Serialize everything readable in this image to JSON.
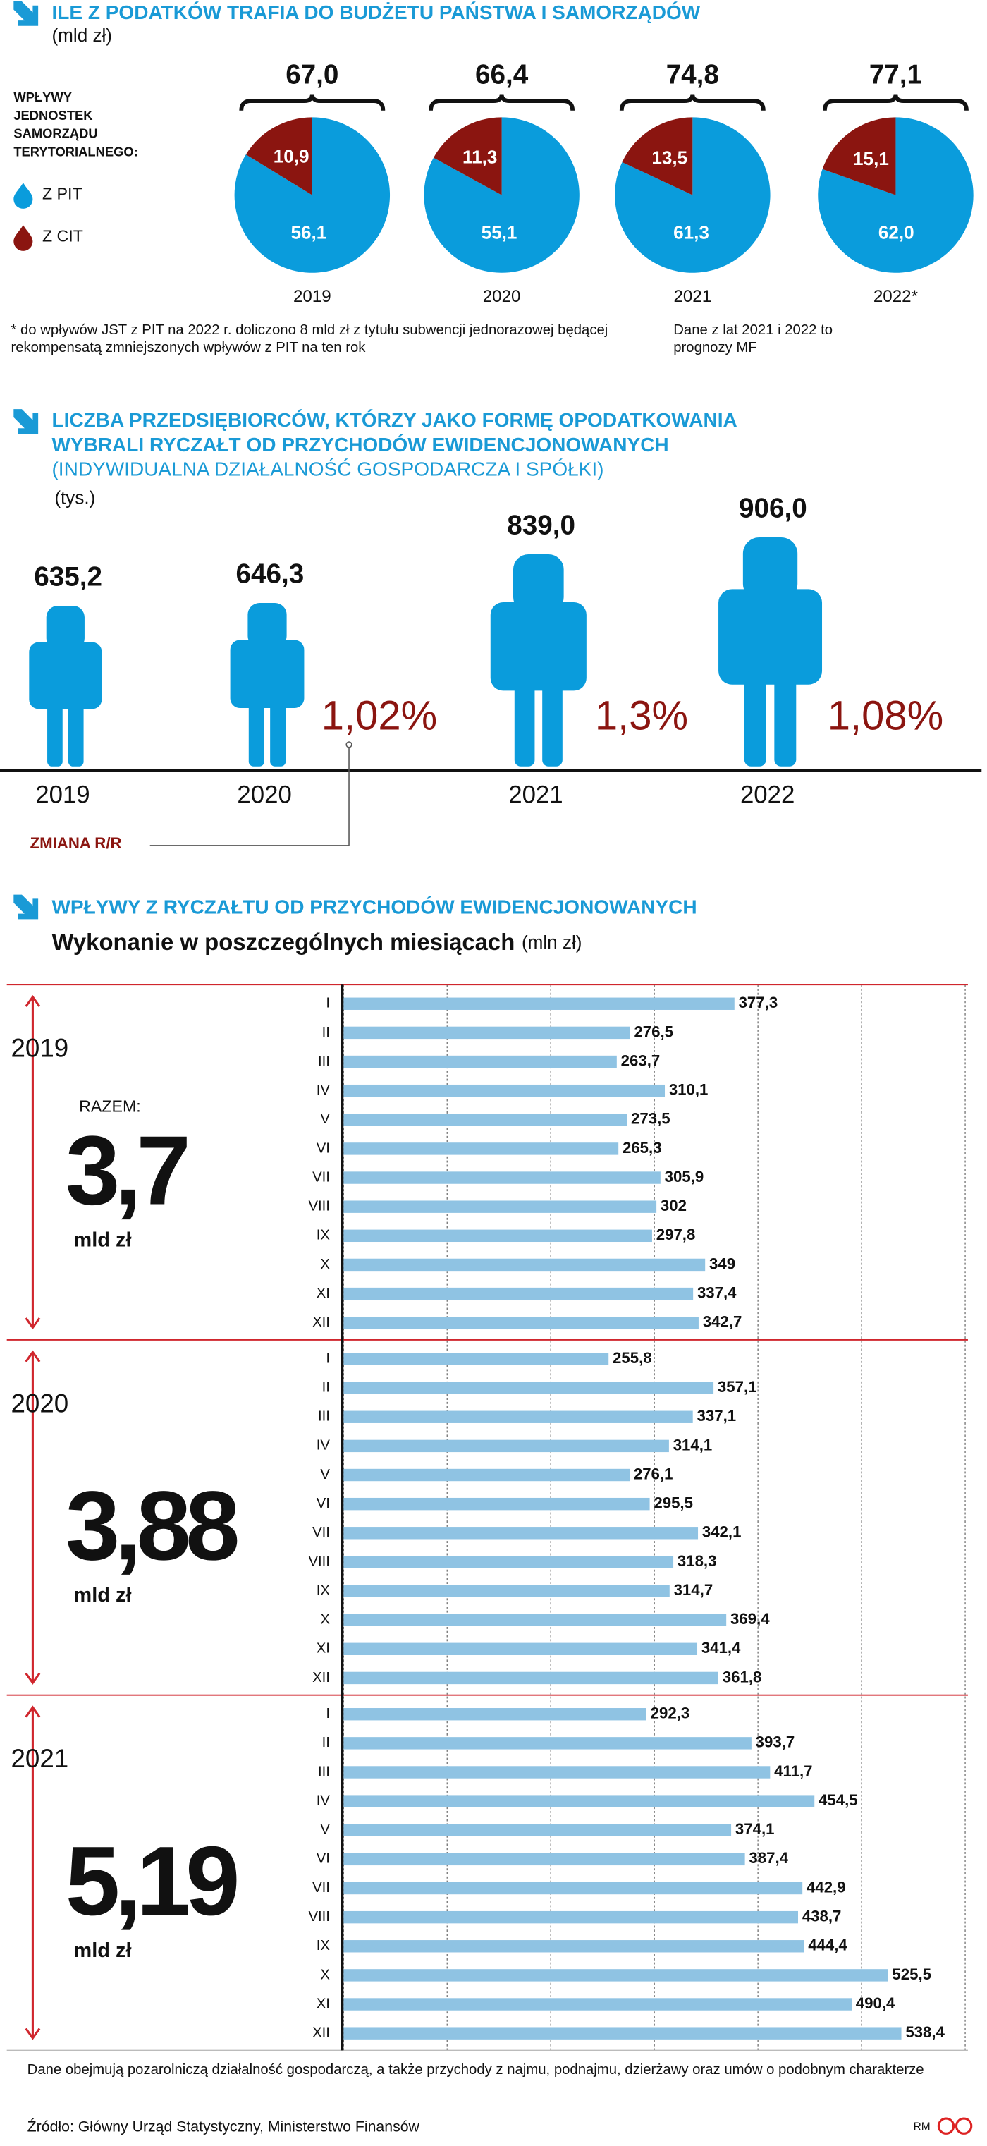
{
  "chart_data": [
    {
      "type": "pie",
      "title": "ILE Z PODATKÓW TRAFIA DO BUDŻETU PAŃSTWA I SAMORZĄDÓW",
      "subtitle": "(mld zł)",
      "legend_title": [
        "WPŁYWY",
        "JEDNOSTEK",
        "SAMORZĄDU",
        "TERYTORIALNEGO:"
      ],
      "categories": [
        "2019",
        "2020",
        "2021",
        "2022*"
      ],
      "totals": [
        67.0,
        66.4,
        74.8,
        77.1
      ],
      "total_labels": [
        "67,0",
        "66,4",
        "74,8",
        "77,1"
      ],
      "series": [
        {
          "name": "Z PIT",
          "color": "#0a9cdc",
          "values": [
            56.1,
            55.1,
            61.3,
            62.0
          ],
          "value_labels": [
            "56,1",
            "55,1",
            "61,3",
            "62,0"
          ]
        },
        {
          "name": "Z CIT",
          "color": "#8b1510",
          "values": [
            10.9,
            11.3,
            13.5,
            15.1
          ],
          "value_labels": [
            "10,9",
            "11,3",
            "13,5",
            "15,1"
          ]
        }
      ],
      "notes": [
        "* do wpływów JST z PIT na 2022 r. doliczono 8 mld zł z tytułu subwencji jednorazowej będącej rekompensatą zmniejszonych wpływów z PIT na ten rok",
        "Dane z lat 2021 i 2022 to prognozy MF"
      ]
    },
    {
      "type": "pictogram",
      "title": [
        "LICZBA PRZEDSIĘBIORCÓW, KTÓRZY JAKO FORMĘ OPODATKOWANIA",
        "WYBRALI RYCZAŁT OD PRZYCHODÓW EWIDENCJONOWANYCH"
      ],
      "subtitle": "(INDYWIDUALNA DZIAŁALNOŚĆ GOSPODARCZA I SPÓŁKI)",
      "unit": "(tys.)",
      "categories": [
        "2019",
        "2020",
        "2021",
        "2022"
      ],
      "values": [
        635.2,
        646.3,
        839.0,
        906.0
      ],
      "value_labels": [
        "635,2",
        "646,3",
        "839,0",
        "906,0"
      ],
      "color": "#0a9cdc",
      "changes": [
        null,
        1.02,
        1.3,
        1.08
      ],
      "change_labels": [
        null,
        "1,02%",
        "1,3%",
        "1,08%"
      ],
      "change_title": "ZMIANA R/R",
      "change_color": "#8b1510"
    },
    {
      "type": "hbar",
      "title": "WPŁYWY Z RYCZAŁTU OD PRZYCHODÓW EWIDENCJONOWANYCH",
      "subtitle": "Wykonanie w poszczególnych miesiącach",
      "unit": "(mln zł)",
      "categories": [
        "I",
        "II",
        "III",
        "IV",
        "V",
        "VI",
        "VII",
        "VIII",
        "IX",
        "X",
        "XI",
        "XII"
      ],
      "xlim": [
        0,
        600
      ],
      "xticks": [
        0,
        100,
        200,
        300,
        400,
        500,
        600
      ],
      "grid": true,
      "color": "#8fc3e3",
      "total_caption": "RAZEM:",
      "total_unit": "mld zł",
      "series": [
        {
          "name": "2019",
          "total": 3.7,
          "total_label": "3,7",
          "values": [
            377.3,
            276.5,
            263.7,
            310.1,
            273.5,
            265.3,
            305.9,
            302,
            297.8,
            349,
            337.4,
            342.7
          ],
          "value_labels": [
            "377,3",
            "276,5",
            "263,7",
            "310,1",
            "273,5",
            "265,3",
            "305,9",
            "302",
            "297,8",
            "349",
            "337,4",
            "342,7"
          ]
        },
        {
          "name": "2020",
          "total": 3.88,
          "total_label": "3,88",
          "values": [
            255.8,
            357.1,
            337.1,
            314.1,
            276.1,
            295.5,
            342.1,
            318.3,
            314.7,
            369.4,
            341.4,
            361.8
          ],
          "value_labels": [
            "255,8",
            "357,1",
            "337,1",
            "314,1",
            "276,1",
            "295,5",
            "342,1",
            "318,3",
            "314,7",
            "369,4",
            "341,4",
            "361,8"
          ]
        },
        {
          "name": "2021",
          "total": 5.19,
          "total_label": "5,19",
          "values": [
            292.3,
            393.7,
            411.7,
            454.5,
            374.1,
            387.4,
            442.9,
            438.7,
            444.4,
            525.5,
            490.4,
            538.4
          ],
          "value_labels": [
            "292,3",
            "393,7",
            "411,7",
            "454,5",
            "374,1",
            "387,4",
            "442,9",
            "438,7",
            "444,4",
            "525,5",
            "490,4",
            "538,4"
          ]
        }
      ]
    }
  ],
  "footer": {
    "note": "Dane obejmują pozarolniczą działalność gospodarczą, a także przychody z najmu, podnajmu, dzierżawy oraz umów o podobnym charakterze",
    "source": "Źródło: Główny Urząd Statystyczny, Ministerstwo Finansów",
    "author": "RM"
  }
}
